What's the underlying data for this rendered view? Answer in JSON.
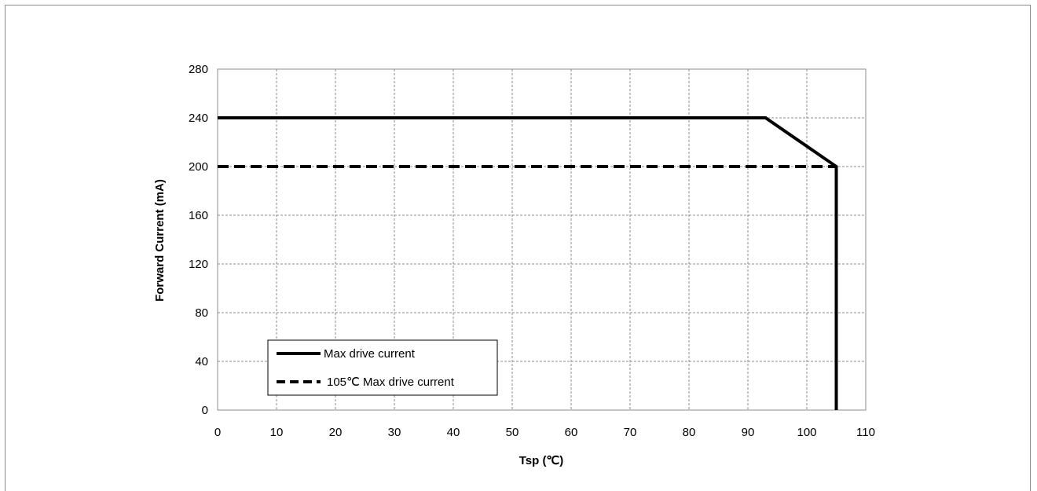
{
  "chart_data": {
    "type": "line",
    "title": "",
    "xlabel": "Tsp (℃)",
    "ylabel": "Forward Current (mA)",
    "xlim": [
      0,
      110
    ],
    "ylim": [
      0,
      280
    ],
    "xticks": [
      0,
      10,
      20,
      30,
      40,
      50,
      60,
      70,
      80,
      90,
      100,
      110
    ],
    "yticks": [
      0,
      40,
      80,
      120,
      160,
      200,
      240,
      280
    ],
    "grid": true,
    "legend_position": "bottom-left",
    "series": [
      {
        "name": "Max drive current",
        "style": "solid",
        "color": "#000000",
        "x": [
          0,
          93,
          105,
          105
        ],
        "y": [
          240,
          240,
          200,
          0
        ]
      },
      {
        "name": "105℃ Max drive current",
        "style": "dashed",
        "color": "#000000",
        "x": [
          0,
          105
        ],
        "y": [
          200,
          200
        ]
      }
    ]
  }
}
